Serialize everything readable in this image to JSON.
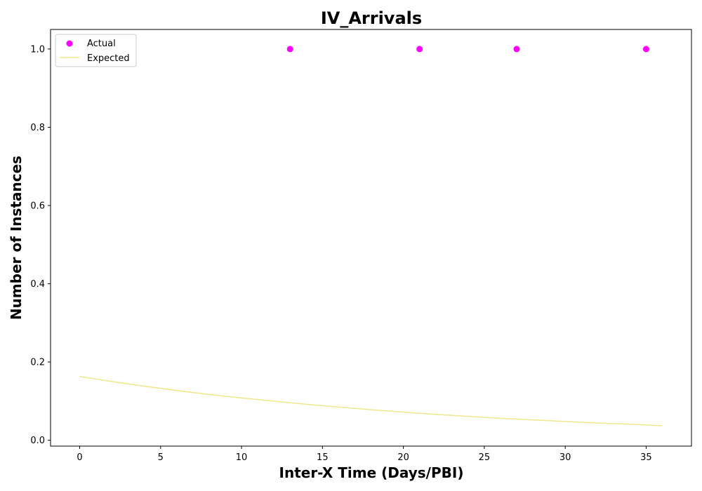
{
  "chart_data": {
    "type": "scatter",
    "title": "IV_Arrivals",
    "xlabel": "Inter-X Time (Days/PBI)",
    "ylabel": "Number of Instances",
    "xlim": [
      -1.8,
      37.8
    ],
    "ylim": [
      -0.015,
      1.05
    ],
    "xticks": [
      0,
      5,
      10,
      15,
      20,
      25,
      30,
      35
    ],
    "xtick_labels": [
      "0",
      "5",
      "10",
      "15",
      "20",
      "25",
      "30",
      "35"
    ],
    "yticks": [
      0.0,
      0.2,
      0.4,
      0.6,
      0.8,
      1.0
    ],
    "ytick_labels": [
      "0.0",
      "0.2",
      "0.4",
      "0.6",
      "0.8",
      "1.0"
    ],
    "grid": false,
    "legend": {
      "placement": "upper-left",
      "entries": [
        "Actual",
        "Expected"
      ]
    },
    "series": [
      {
        "name": "Actual",
        "kind": "scatter",
        "color": "#ff00ff",
        "x": [
          13,
          21,
          27,
          35
        ],
        "y": [
          1.0,
          1.0,
          1.0,
          1.0
        ]
      },
      {
        "name": "Expected",
        "kind": "line",
        "color": "#f0e68c",
        "x": [
          0,
          2,
          4,
          6,
          8,
          10,
          12,
          14,
          16,
          18,
          20,
          22,
          24,
          26,
          28,
          30,
          32,
          34,
          36
        ],
        "y": [
          0.163,
          0.15,
          0.138,
          0.127,
          0.117,
          0.108,
          0.1,
          0.092,
          0.085,
          0.078,
          0.072,
          0.066,
          0.061,
          0.056,
          0.052,
          0.048,
          0.044,
          0.041,
          0.037
        ]
      }
    ]
  }
}
